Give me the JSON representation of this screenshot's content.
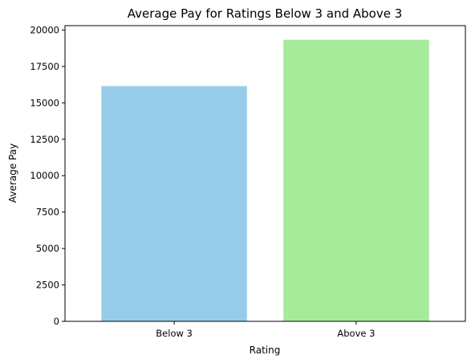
{
  "chart_data": {
    "type": "bar",
    "title": "Average Pay for Ratings Below 3 and Above 3",
    "xlabel": "Rating",
    "ylabel": "Average Pay",
    "categories": [
      "Below 3",
      "Above 3"
    ],
    "values": [
      16150,
      19330
    ],
    "colors": [
      "#97cce8",
      "#a6eb9a"
    ],
    "ylim": [
      0,
      20300
    ],
    "yticks": [
      0,
      2500,
      5000,
      7500,
      10000,
      12500,
      15000,
      17500,
      20000
    ],
    "grid": false,
    "legend": "none"
  }
}
